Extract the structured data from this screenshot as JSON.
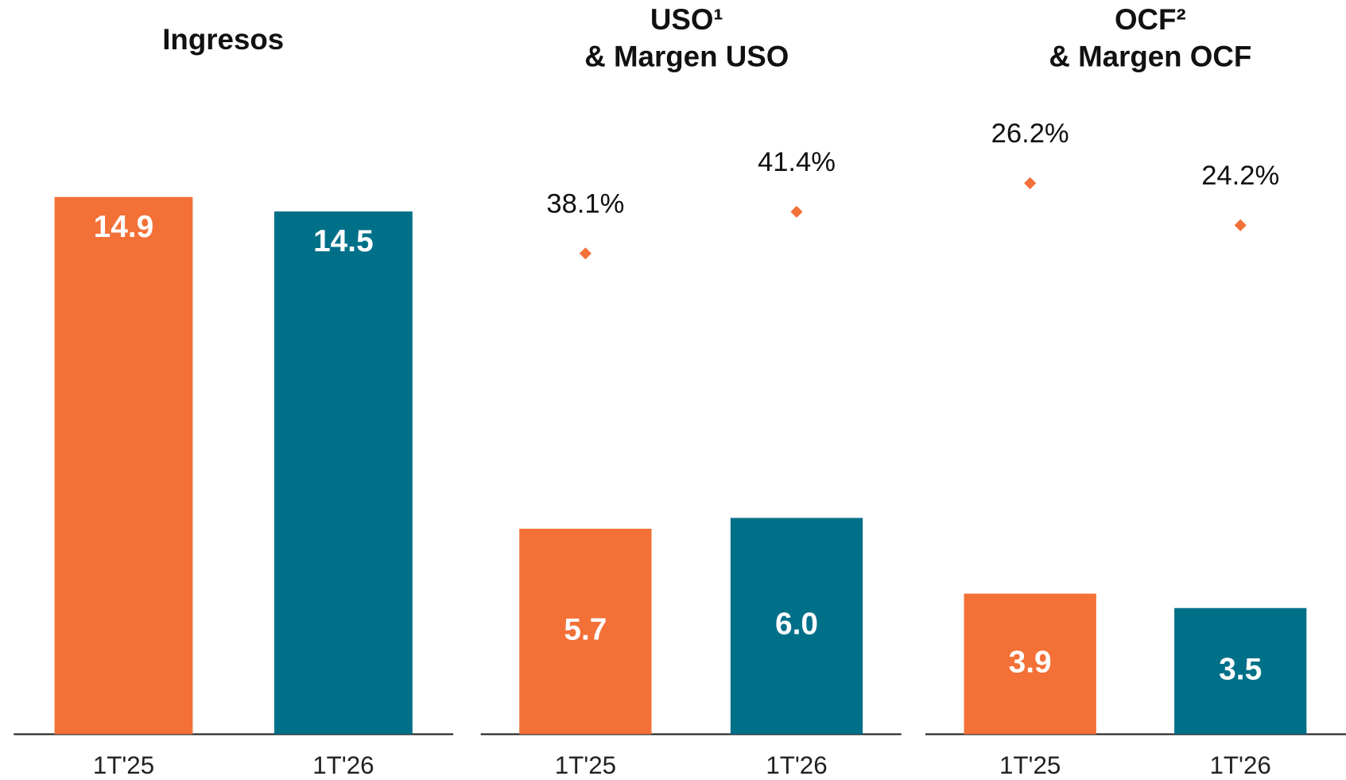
{
  "chart_data": [
    {
      "type": "bar",
      "title": [
        "Ingresos"
      ],
      "categories": [
        "1T'25",
        "1T'26"
      ],
      "ylim": [
        0,
        17.5
      ],
      "series": [
        {
          "values": [
            14.9,
            14.5
          ],
          "value_labels": [
            "14.9",
            "14.5"
          ],
          "colors": [
            "#f37037",
            "#007088"
          ]
        }
      ]
    },
    {
      "type": "bar",
      "title": [
        "USO¹",
        "& Margen USO"
      ],
      "categories": [
        "1T'25",
        "1T'26"
      ],
      "ylim": [
        0,
        17.5
      ],
      "y2lim": [
        0,
        50
      ],
      "series": [
        {
          "values": [
            5.7,
            6.0
          ],
          "value_labels": [
            "5.7",
            "6.0"
          ],
          "colors": [
            "#f37037",
            "#007088"
          ]
        },
        {
          "type": "scatter",
          "axis": "y2",
          "values": [
            38.1,
            41.4
          ],
          "value_labels": [
            "38.1%",
            "41.4%"
          ],
          "color": "#f37037"
        }
      ]
    },
    {
      "type": "bar",
      "title": [
        "OCF²",
        "& Margen OCF"
      ],
      "categories": [
        "1T'25",
        "1T'26"
      ],
      "ylim": [
        0,
        17.5
      ],
      "y2lim": [
        0,
        30
      ],
      "series": [
        {
          "values": [
            3.9,
            3.5
          ],
          "value_labels": [
            "3.9",
            "3.5"
          ],
          "colors": [
            "#f37037",
            "#007088"
          ]
        },
        {
          "type": "scatter",
          "axis": "y2",
          "values": [
            26.2,
            24.2
          ],
          "value_labels": [
            "26.2%",
            "24.2%"
          ],
          "color": "#f37037"
        }
      ]
    }
  ]
}
